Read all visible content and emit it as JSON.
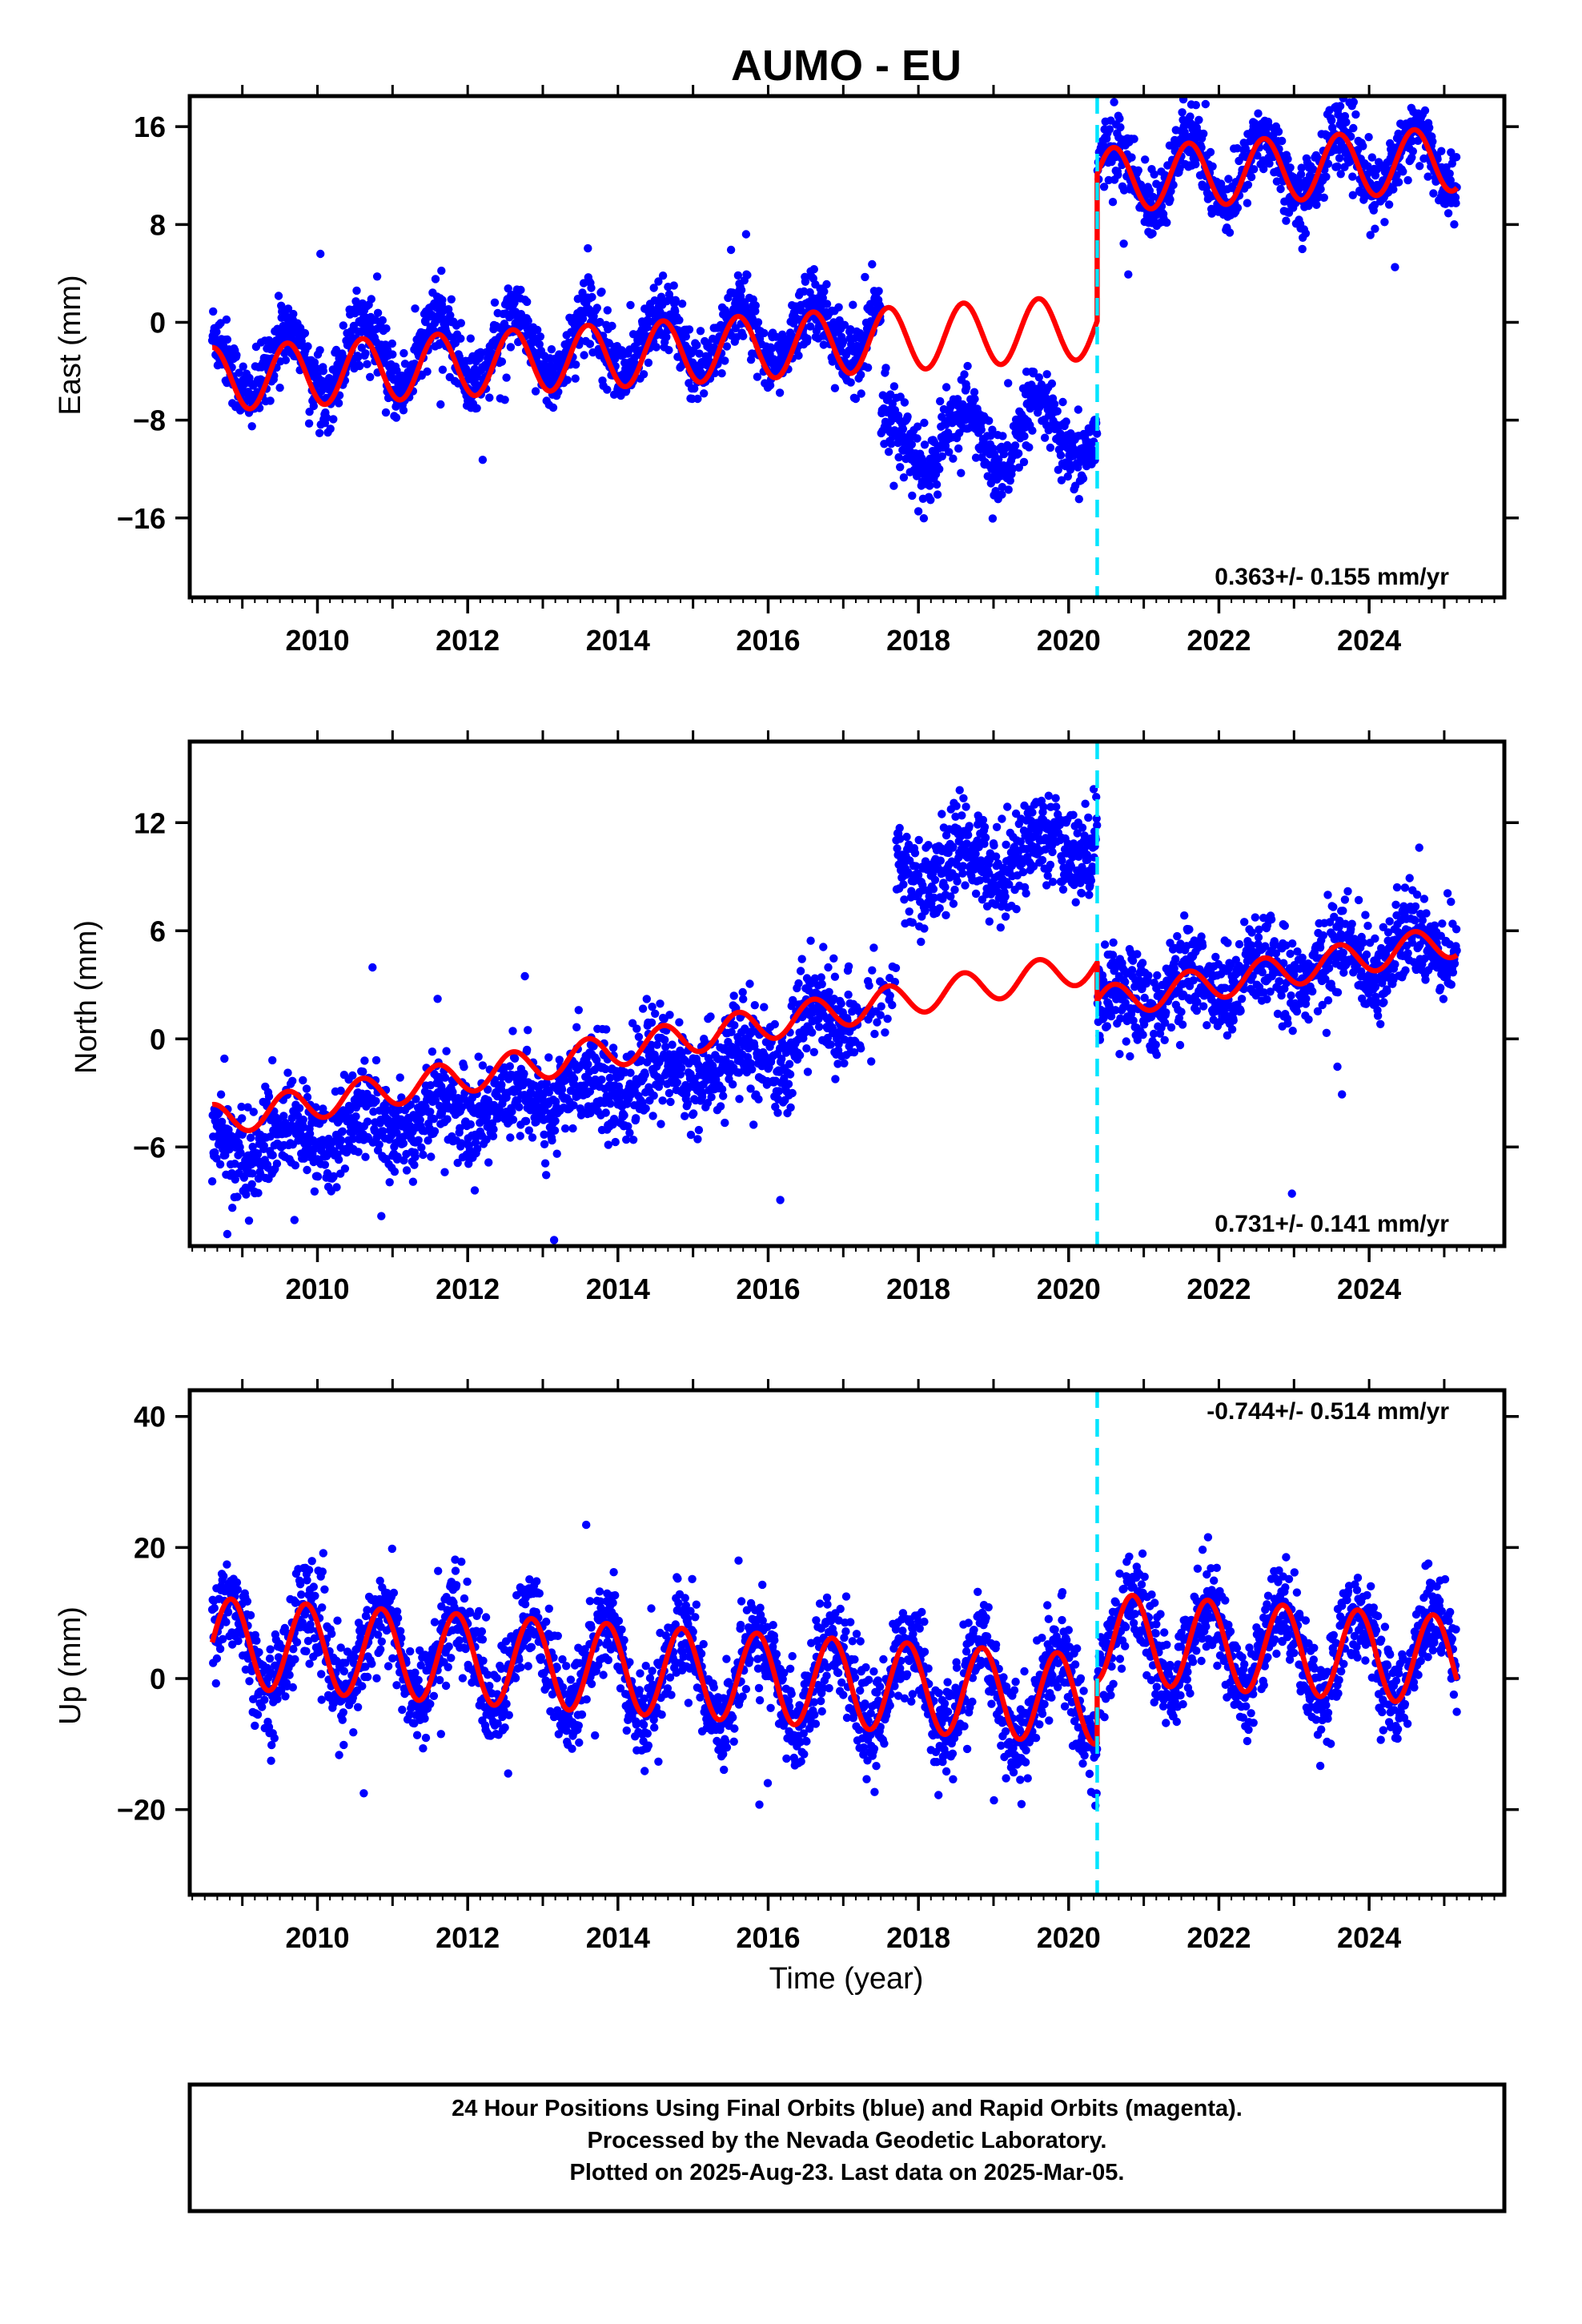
{
  "title": "AUMO - EU",
  "xlabel": "Time (year)",
  "footer": {
    "line1": "24 Hour Positions Using Final Orbits (blue) and Rapid Orbits (magenta).",
    "line2": "Processed by the Nevada Geodetic Laboratory.",
    "line3": "Plotted on 2025-Aug-23. Last data on 2025-Mar-05."
  },
  "colors": {
    "data": "#0000ff",
    "model": "#ff0000",
    "offset_line": "#00e5ff"
  },
  "chart_data": [
    {
      "type": "scatter",
      "component": "east",
      "ylabel": "East (mm)",
      "xlim": [
        2008.3,
        2025.8
      ],
      "ylim": [
        -22.5,
        18.5
      ],
      "yticks": [
        16,
        8,
        0,
        -8,
        -16
      ],
      "ytick_labels": [
        "16",
        "8",
        "0",
        "−8",
        "−16"
      ],
      "xticks": [
        2010,
        2012,
        2014,
        2016,
        2018,
        2020,
        2022,
        2024
      ],
      "rate_text": "0.363+/- 0.155 mm/yr",
      "offset_epoch": 2020.38,
      "data_range": [
        2008.6,
        2025.17
      ],
      "model": {
        "slope": 0.363,
        "ref_epoch": 2014.0,
        "segments": [
          {
            "start": 2008.6,
            "end": 2020.38,
            "offset": -2.7,
            "amp": 2.6
          },
          {
            "start": 2020.38,
            "end": 2025.17,
            "offset": 9.3,
            "amp": 2.6
          }
        ],
        "phase": 2008.6
      },
      "observed_offsets": [
        {
          "start": 2008.6,
          "end": 2017.5,
          "shift": 1.0
        },
        {
          "start": 2017.5,
          "end": 2020.38,
          "shift": -8.5
        },
        {
          "start": 2020.38,
          "end": 2025.17,
          "shift": 0.2
        }
      ],
      "noise": 1.4
    },
    {
      "type": "scatter",
      "component": "north",
      "ylabel": "North (mm)",
      "xlim": [
        2008.3,
        2025.8
      ],
      "ylim": [
        -11.5,
        16.5
      ],
      "yticks": [
        12,
        6,
        0,
        -6
      ],
      "ytick_labels": [
        "12",
        "6",
        "0",
        "−6"
      ],
      "xticks": [
        2010,
        2012,
        2014,
        2016,
        2018,
        2020,
        2022,
        2024
      ],
      "rate_text": "0.731+/- 0.141 mm/yr",
      "offset_epoch": 2020.38,
      "data_range": [
        2008.6,
        2025.17
      ],
      "model": {
        "slope": 0.731,
        "ref_epoch": 2014.0,
        "segments": [
          {
            "start": 2008.6,
            "end": 2020.38,
            "offset": -0.6,
            "amp": 0.9
          },
          {
            "start": 2020.38,
            "end": 2025.17,
            "offset": -2.7,
            "amp": 0.9
          }
        ],
        "phase": 2008.6
      },
      "observed_offsets": [
        {
          "start": 2008.6,
          "end": 2016.3,
          "shift": -1.8
        },
        {
          "start": 2016.3,
          "end": 2017.7,
          "shift": -0.3
        },
        {
          "start": 2017.7,
          "end": 2020.38,
          "shift": 7.0
        },
        {
          "start": 2020.38,
          "end": 2025.17,
          "shift": 0.0
        }
      ],
      "noise": 1.3
    },
    {
      "type": "scatter",
      "component": "up",
      "ylabel": "Up (mm)",
      "xlim": [
        2008.3,
        2025.8
      ],
      "ylim": [
        -33,
        44
      ],
      "yticks": [
        40,
        20,
        0,
        -20
      ],
      "ytick_labels": [
        "40",
        "20",
        "0",
        "−20"
      ],
      "xticks": [
        2010,
        2012,
        2014,
        2016,
        2018,
        2020,
        2022,
        2024
      ],
      "rate_text": "-0.744+/- 0.514 mm/yr",
      "offset_epoch": 2020.38,
      "data_range": [
        2008.6,
        2025.17
      ],
      "model": {
        "slope": -0.744,
        "ref_epoch": 2014.0,
        "segments": [
          {
            "start": 2008.6,
            "end": 2020.38,
            "offset": 1.5,
            "amp": 6.8
          },
          {
            "start": 2020.38,
            "end": 2025.17,
            "offset": 11.0,
            "amp": 6.8
          }
        ],
        "phase": 2008.85
      },
      "observed_offsets": [
        {
          "start": 2008.6,
          "end": 2025.17,
          "shift": 0.0
        }
      ],
      "noise": 3.6
    }
  ]
}
